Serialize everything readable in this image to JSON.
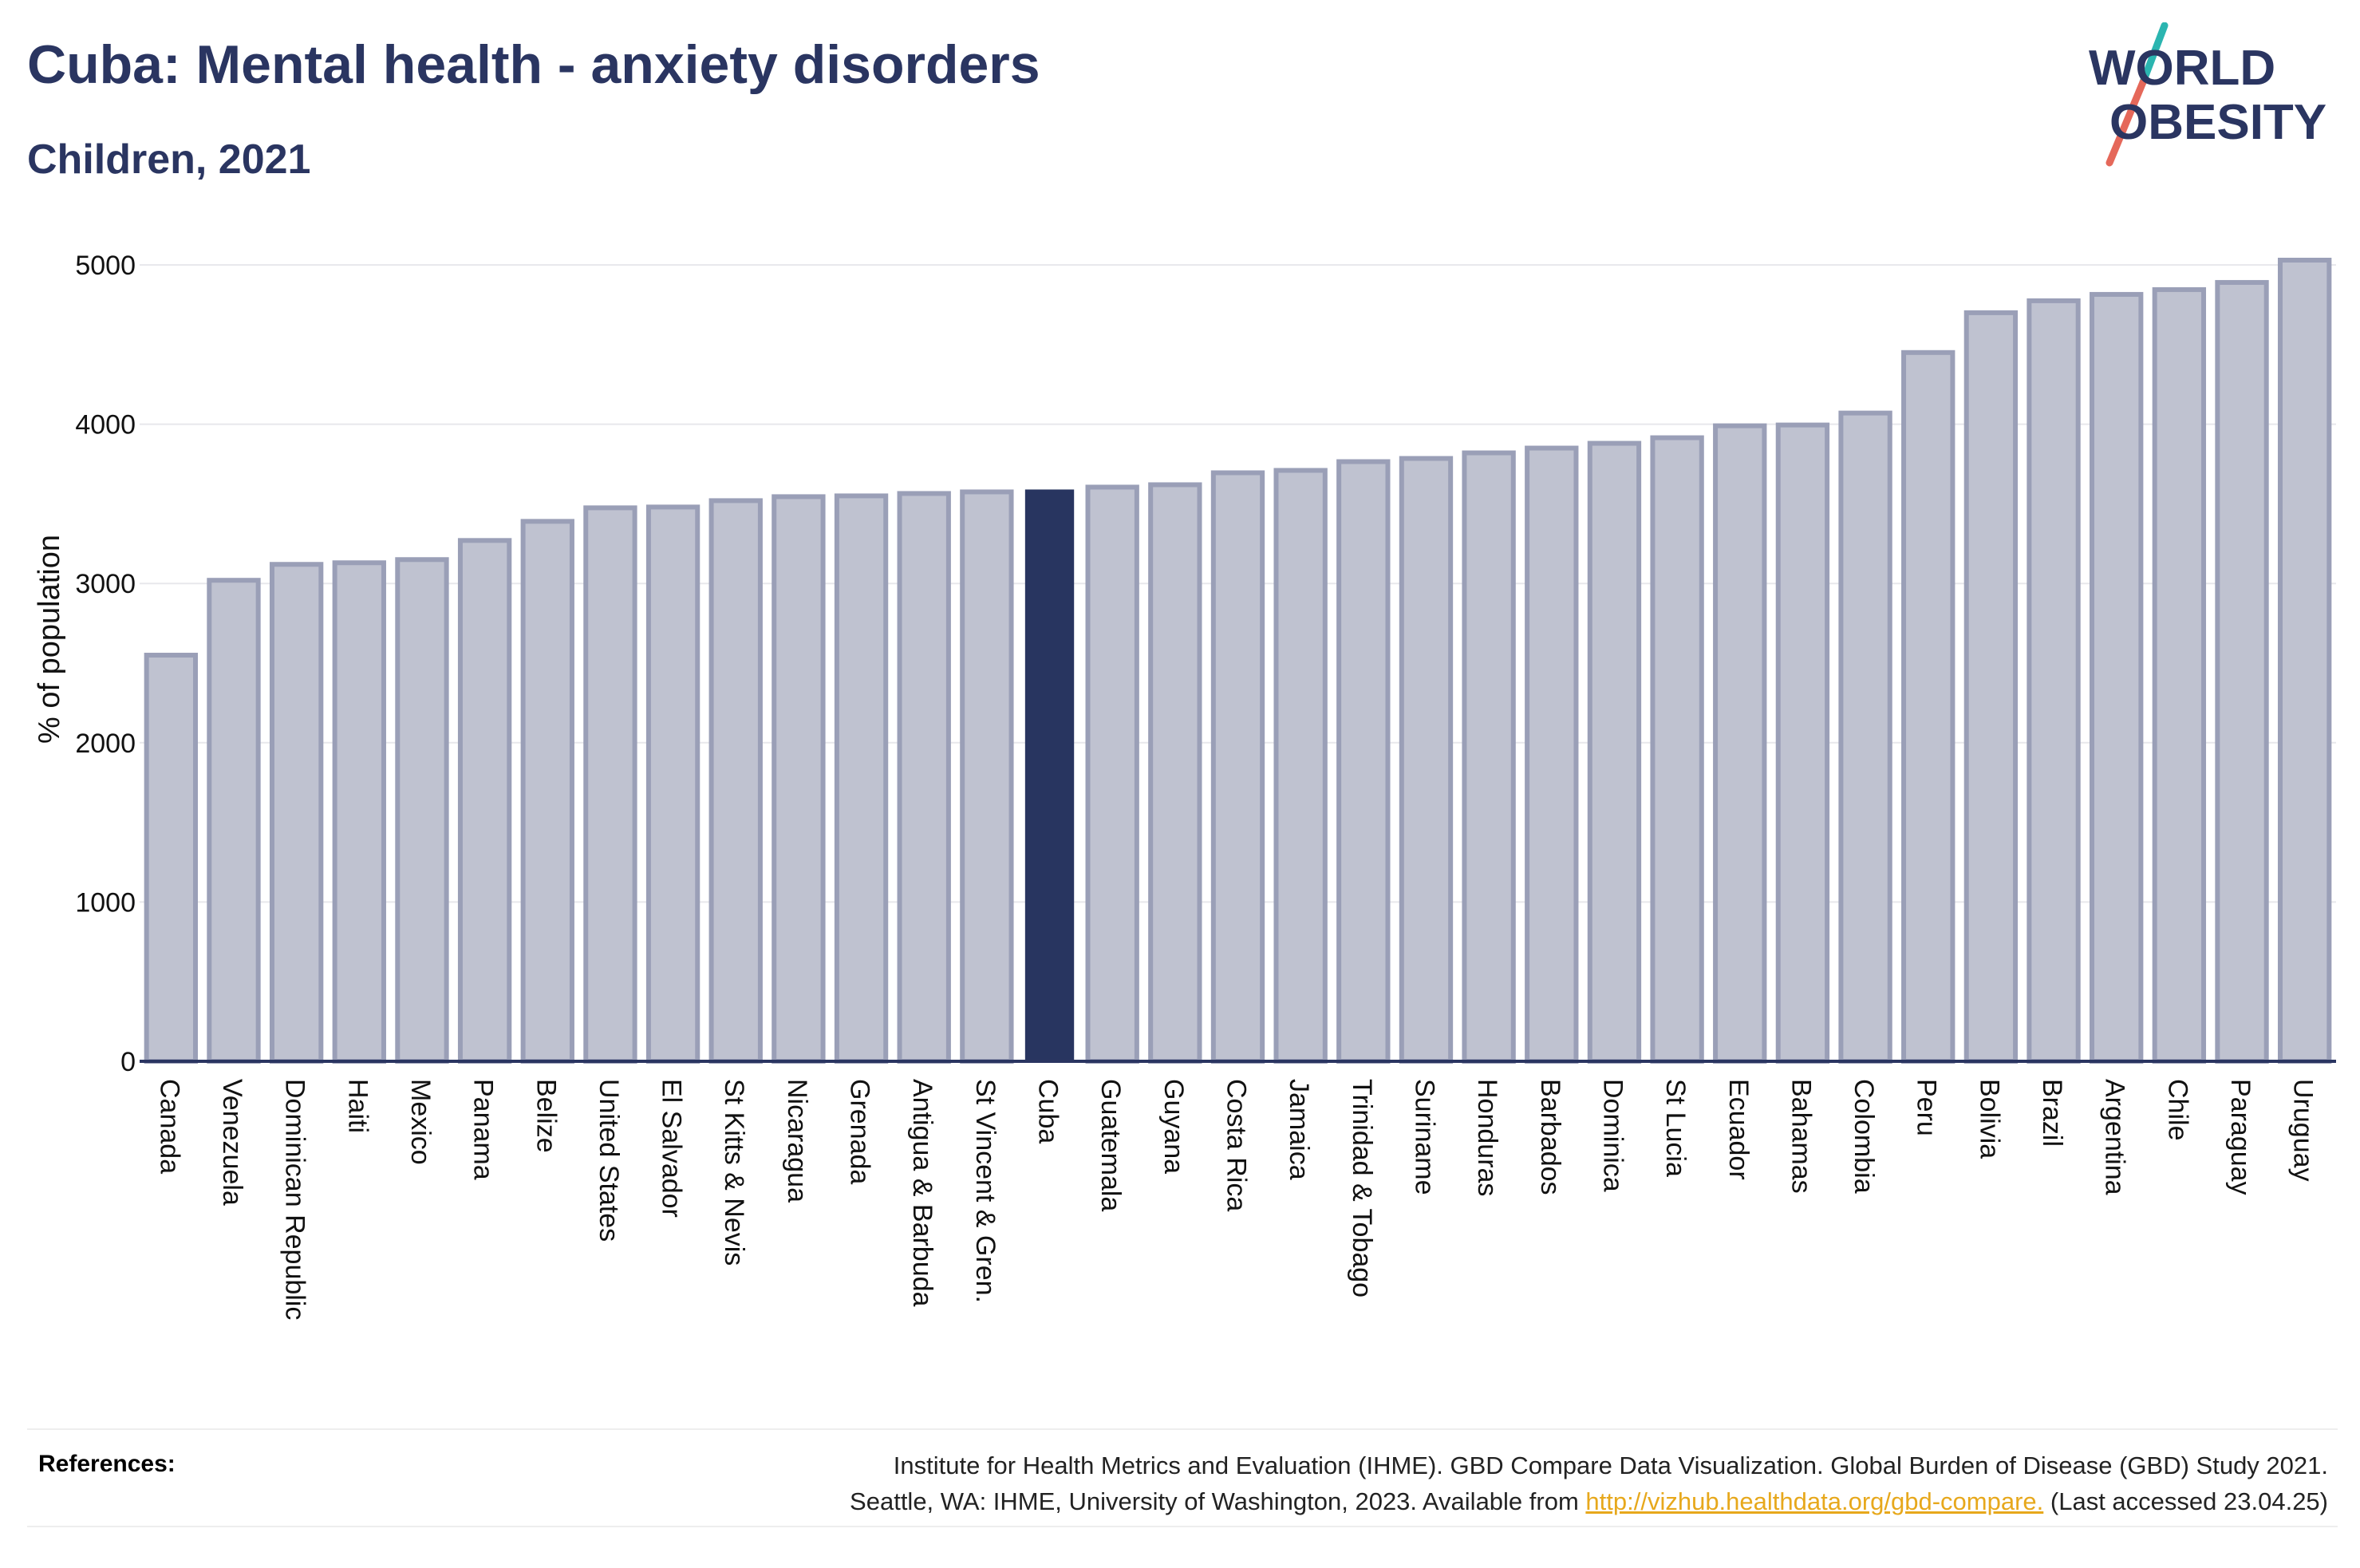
{
  "header": {
    "title": "Cuba: Mental health - anxiety disorders",
    "subtitle": "Children, 2021"
  },
  "logo": {
    "line1": "WORLD",
    "line2": "OBESITY",
    "colors": {
      "text": "#2a3561",
      "slash_top": "#2bb5b0",
      "slash_bottom": "#e5685a"
    }
  },
  "colors": {
    "highlight_bar": "#283560",
    "default_bar_fill": "#bfc2d0",
    "default_bar_stroke": "#9a9fb7",
    "axis": "#2a3561",
    "grid": "#e8e8ec",
    "text": "#111111"
  },
  "chart_data": {
    "type": "bar",
    "title": "Cuba: Mental health - anxiety disorders",
    "subtitle": "Children, 2021",
    "ylabel": "% of population",
    "xlabel": "",
    "ylim": [
      0,
      5000
    ],
    "yticks": [
      0,
      1000,
      2000,
      3000,
      4000,
      5000
    ],
    "grid": true,
    "highlight": "Cuba",
    "categories": [
      "Canada",
      "Venezuela",
      "Dominican Republic",
      "Haiti",
      "Mexico",
      "Panama",
      "Belize",
      "United States",
      "El Salvador",
      "St Kitts & Nevis",
      "Nicaragua",
      "Grenada",
      "Antigua & Barbuda",
      "St Vincent & Gren.",
      "Cuba",
      "Guatemala",
      "Guyana",
      "Costa Rica",
      "Jamaica",
      "Trinidad & Tobago",
      "Suriname",
      "Honduras",
      "Barbados",
      "Dominica",
      "St Lucia",
      "Ecuador",
      "Bahamas",
      "Colombia",
      "Peru",
      "Bolivia",
      "Brazil",
      "Argentina",
      "Chile",
      "Paraguay",
      "Uruguay"
    ],
    "values": [
      2550,
      3020,
      3120,
      3130,
      3150,
      3270,
      3390,
      3475,
      3480,
      3520,
      3545,
      3550,
      3565,
      3575,
      3590,
      3605,
      3620,
      3695,
      3710,
      3765,
      3785,
      3820,
      3850,
      3880,
      3915,
      3990,
      3995,
      4070,
      4450,
      4700,
      4775,
      4815,
      4845,
      4890,
      5030
    ]
  },
  "references": {
    "label": "References:",
    "line1": "Institute for Health Metrics and Evaluation (IHME). GBD Compare Data Visualization. Global Burden of Disease (GBD) Study 2021.",
    "line2_prefix": "Seattle, WA: IHME, University of Washington, 2023. Available from ",
    "link_text": "http://vizhub.healthdata.org/gbd-compare.",
    "line2_suffix": " (Last accessed 23.04.25)"
  }
}
